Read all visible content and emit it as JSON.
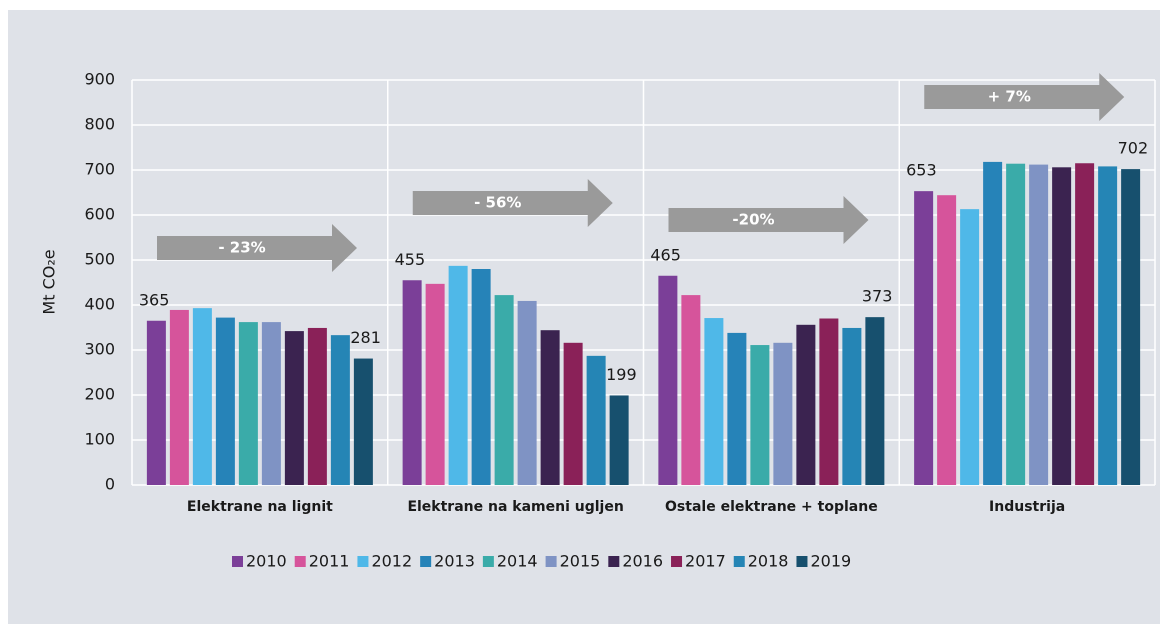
{
  "chart_data": {
    "type": "bar",
    "ylabel": "Mt CO₂e",
    "categories": [
      "Elektrane na lignit",
      "Elektrane na kameni ugljen",
      "Ostale elektrane + toplane",
      "Industrija"
    ],
    "annotations": [
      "- 23%",
      "- 56%",
      "-20%",
      "+ 7%"
    ],
    "series": [
      {
        "name": "2010",
        "color": "#7b3f98",
        "values": [
          365,
          455,
          465,
          653
        ]
      },
      {
        "name": "2011",
        "color": "#d6549b",
        "values": [
          389,
          447,
          422,
          644
        ]
      },
      {
        "name": "2012",
        "color": "#4fb8e8",
        "values": [
          393,
          487,
          371,
          613
        ]
      },
      {
        "name": "2013",
        "color": "#2683b8",
        "values": [
          372,
          480,
          338,
          718
        ]
      },
      {
        "name": "2014",
        "color": "#3aaba9",
        "values": [
          362,
          422,
          311,
          714
        ]
      },
      {
        "name": "2015",
        "color": "#7f93c4",
        "values": [
          362,
          409,
          316,
          712
        ]
      },
      {
        "name": "2016",
        "color": "#3b2350",
        "values": [
          342,
          344,
          356,
          706
        ]
      },
      {
        "name": "2017",
        "color": "#8a2158",
        "values": [
          349,
          316,
          370,
          715
        ]
      },
      {
        "name": "2018",
        "color": "#2585b5",
        "values": [
          333,
          287,
          349,
          708
        ]
      },
      {
        "name": "2019",
        "color": "#17506e",
        "values": [
          281,
          199,
          373,
          702
        ]
      }
    ],
    "ylim": [
      0,
      900
    ],
    "yticks": [
      0,
      100,
      200,
      300,
      400,
      500,
      600,
      700,
      800,
      900
    ],
    "grid": true
  }
}
